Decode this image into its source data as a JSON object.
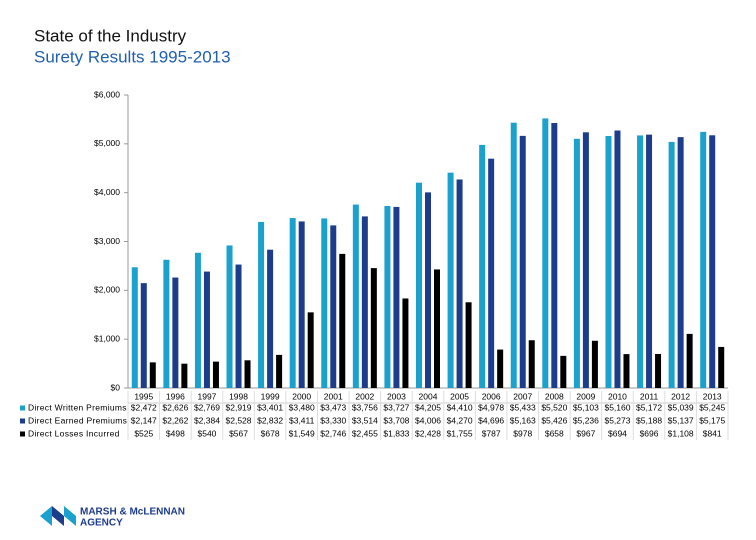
{
  "chart_data": {
    "type": "bar",
    "title": "State of the Industry",
    "subtitle": "Surety Results 1995-2013",
    "categories": [
      "1995",
      "1996",
      "1997",
      "1998",
      "1999",
      "2000",
      "2001",
      "2002",
      "2003",
      "2004",
      "2005",
      "2006",
      "2007",
      "2008",
      "2009",
      "2010",
      "2011",
      "2012",
      "2013"
    ],
    "series": [
      {
        "name": "Direct Written Premiums",
        "color": "#1ba1cd",
        "values": [
          2472,
          2626,
          2769,
          2919,
          3401,
          3480,
          3473,
          3756,
          3727,
          4205,
          4410,
          4978,
          5433,
          5520,
          5103,
          5160,
          5172,
          5039,
          5245
        ],
        "value_labels": [
          "$2,472",
          "$2,626",
          "$2,769",
          "$2,919",
          "$3,401",
          "$3,480",
          "$3,473",
          "$3,756",
          "$3,727",
          "$4,205",
          "$4,410",
          "$4,978",
          "$5,433",
          "$5,520",
          "$5,103",
          "$5,160",
          "$5,172",
          "$5,039",
          "$5,245"
        ]
      },
      {
        "name": "Direct Earned Premiums",
        "color": "#1c3c8c",
        "values": [
          2147,
          2262,
          2384,
          2528,
          2832,
          3411,
          3330,
          3514,
          3708,
          4006,
          4270,
          4696,
          5163,
          5426,
          5236,
          5273,
          5188,
          5137,
          5175
        ],
        "value_labels": [
          "$2,147",
          "$2,262",
          "$2,384",
          "$2,528",
          "$2,832",
          "$3,411",
          "$3,330",
          "$3,514",
          "$3,708",
          "$4,006",
          "$4,270",
          "$4,696",
          "$5,163",
          "$5,426",
          "$5,236",
          "$5,273",
          "$5,188",
          "$5,137",
          "$5,175"
        ]
      },
      {
        "name": "Direct Losses Incurred",
        "color": "#000000",
        "values": [
          525,
          498,
          540,
          567,
          678,
          1549,
          2746,
          2455,
          1833,
          2428,
          1755,
          787,
          978,
          658,
          967,
          694,
          696,
          1108,
          841
        ],
        "value_labels": [
          "$525",
          "$498",
          "$540",
          "$567",
          "$678",
          "$1,549",
          "$2,746",
          "$2,455",
          "$1,833",
          "$2,428",
          "$1,755",
          "$787",
          "$978",
          "$658",
          "$967",
          "$694",
          "$696",
          "$1,108",
          "$841"
        ]
      }
    ],
    "ylim": [
      0,
      6000
    ],
    "yticks": [
      {
        "value": 0,
        "label": "$0"
      },
      {
        "value": 1000,
        "label": "$1,000"
      },
      {
        "value": 2000,
        "label": "$2,000"
      },
      {
        "value": 3000,
        "label": "$3,000"
      },
      {
        "value": 4000,
        "label": "$4,000"
      },
      {
        "value": 5000,
        "label": "$5,000"
      },
      {
        "value": 6000,
        "label": "$6,000"
      }
    ],
    "grid": false
  },
  "logo": {
    "line1": "MARSH & McLENNAN",
    "line2": "AGENCY"
  }
}
